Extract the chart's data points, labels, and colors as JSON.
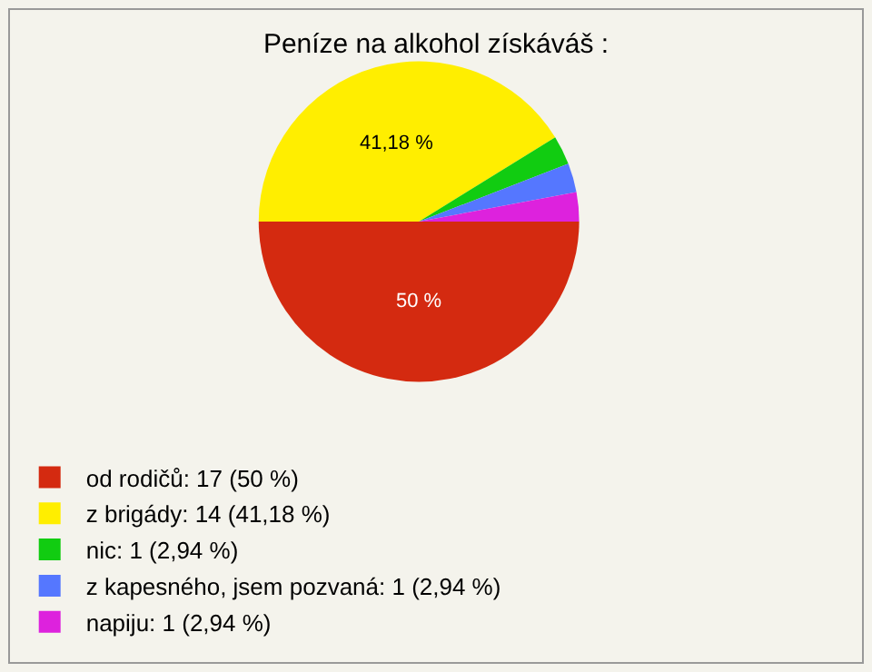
{
  "chart_data": {
    "type": "pie",
    "title": "Peníze na alkohol získáváš :",
    "categories": [
      "od rodičů: 17 (50 %)",
      "z brigády: 14 (41,18 %)",
      "nic: 1 (2,94 %)",
      "z kapesného, jsem pozvaná: 1 (2,94 %)",
      "napiju: 1 (2,94 %)"
    ],
    "values": [
      50,
      41.18,
      2.94,
      2.94,
      2.94
    ],
    "colors": [
      "#d42a10",
      "#ffee00",
      "#11cc11",
      "#5577ff",
      "#dd22dd"
    ],
    "value_labels": [
      "50 %",
      "41,18 %",
      null,
      null,
      null
    ],
    "legend": "bottom left"
  }
}
